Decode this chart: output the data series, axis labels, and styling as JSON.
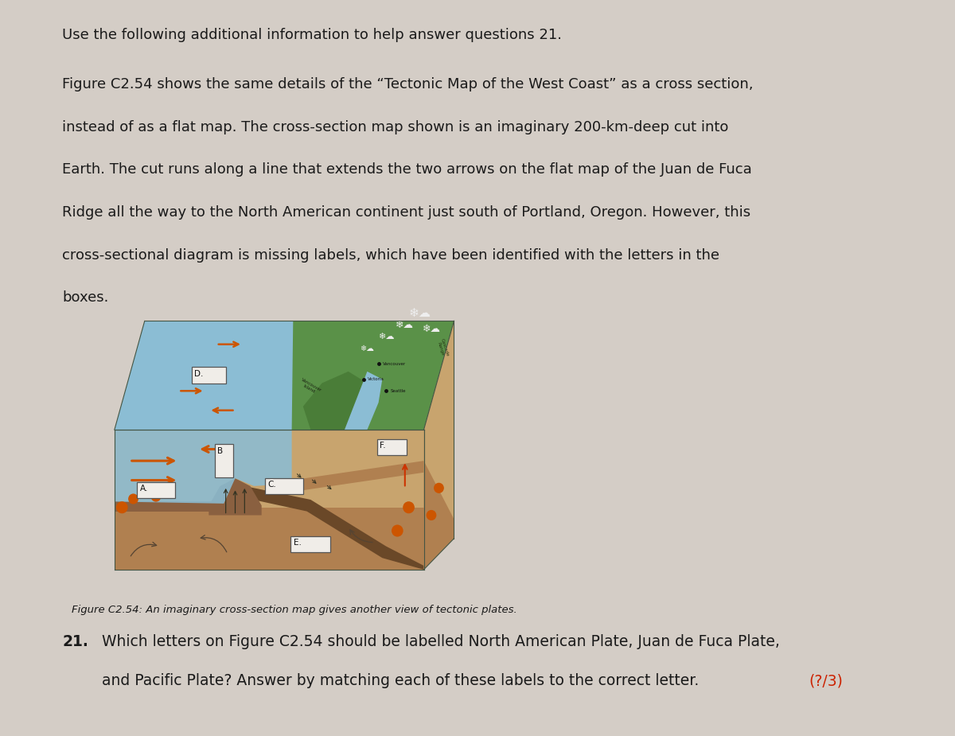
{
  "background_color": "#d4cdc6",
  "title_line1": "Use the following additional information to help answer questions 21.",
  "para_line1": "Figure C2.54 shows the same details of the “Tectonic Map of the West Coast” as a cross section,",
  "para_line2": "instead of as a flat map. The cross-section map shown is an imaginary 200-km-deep cut into",
  "para_line3": "Earth. The cut runs along a line that extends the two arrows on the flat map of the Juan de Fuca",
  "para_line4": "Ridge all the way to the North American continent just south of Portland, Oregon. However, this",
  "para_line5": "cross-sectional diagram is missing labels, which have been identified with the letters in the",
  "para_line6": "boxes.",
  "figure_caption": "Figure C2.54: An imaginary cross-section map gives another view of tectonic plates.",
  "q_number": "21.",
  "q_line1": "Which letters on Figure C2.54 should be labelled North American Plate, Juan de Fuca Plate,",
  "q_line2": "and Pacific Plate? Answer by matching each of these labels to the correct letter.  ",
  "q_mark": "(?/3)",
  "text_color": "#1a1a1a",
  "q_mark_color": "#cc2200",
  "font_size_title": 13.0,
  "font_size_body": 13.0,
  "font_size_q": 13.5,
  "font_size_caption": 9.5,
  "ocean_top_color": "#8bbdd4",
  "ocean_front_color": "#8bbdd4",
  "land_color": "#5a9148",
  "land_dark_color": "#4a7d38",
  "brown_light": "#c8a46e",
  "brown_mid": "#b08050",
  "brown_dark": "#8a6040",
  "brown_darker": "#6a4828",
  "orange_arrow": "#cc5500",
  "red_hot": "#cc3300",
  "box_fill": "#f0ede8",
  "box_edge": "#555555"
}
